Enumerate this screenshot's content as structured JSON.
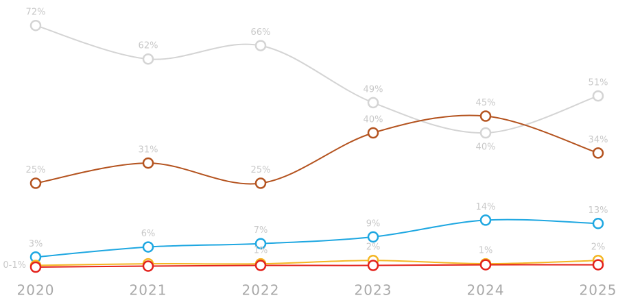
{
  "chart_data": {
    "type": "line",
    "categories": [
      "2020",
      "2021",
      "2022",
      "2023",
      "2024",
      "2025"
    ],
    "ylim": [
      0,
      75
    ],
    "smooth": true,
    "series": [
      {
        "color": "#d4d4d4",
        "values": [
          72,
          62,
          66,
          49,
          40,
          51
        ],
        "value_labels": [
          "72%",
          "62%",
          "66%",
          "49%",
          "40%",
          "51%"
        ]
      },
      {
        "color": "#b4531f",
        "values": [
          25,
          31,
          25,
          40,
          45,
          34
        ],
        "value_labels": [
          "25%",
          "31%",
          "25%",
          "40%",
          "45%",
          "34%"
        ]
      },
      {
        "color": "#1ea7e1",
        "values": [
          3,
          6,
          7,
          9,
          14,
          13
        ],
        "value_labels": [
          "3%",
          "6%",
          "7%",
          "9%",
          "14%",
          "13%"
        ]
      },
      {
        "color": "#f4b623",
        "values": [
          0.5,
          1,
          1,
          2,
          1,
          2
        ],
        "value_labels": [
          "0-1%",
          null,
          "1%",
          "2%",
          "1%",
          "2%"
        ]
      },
      {
        "color": "#e3211b",
        "values": [
          0,
          0.3,
          0.5,
          0.5,
          0.7,
          0.7
        ]
      }
    ]
  }
}
